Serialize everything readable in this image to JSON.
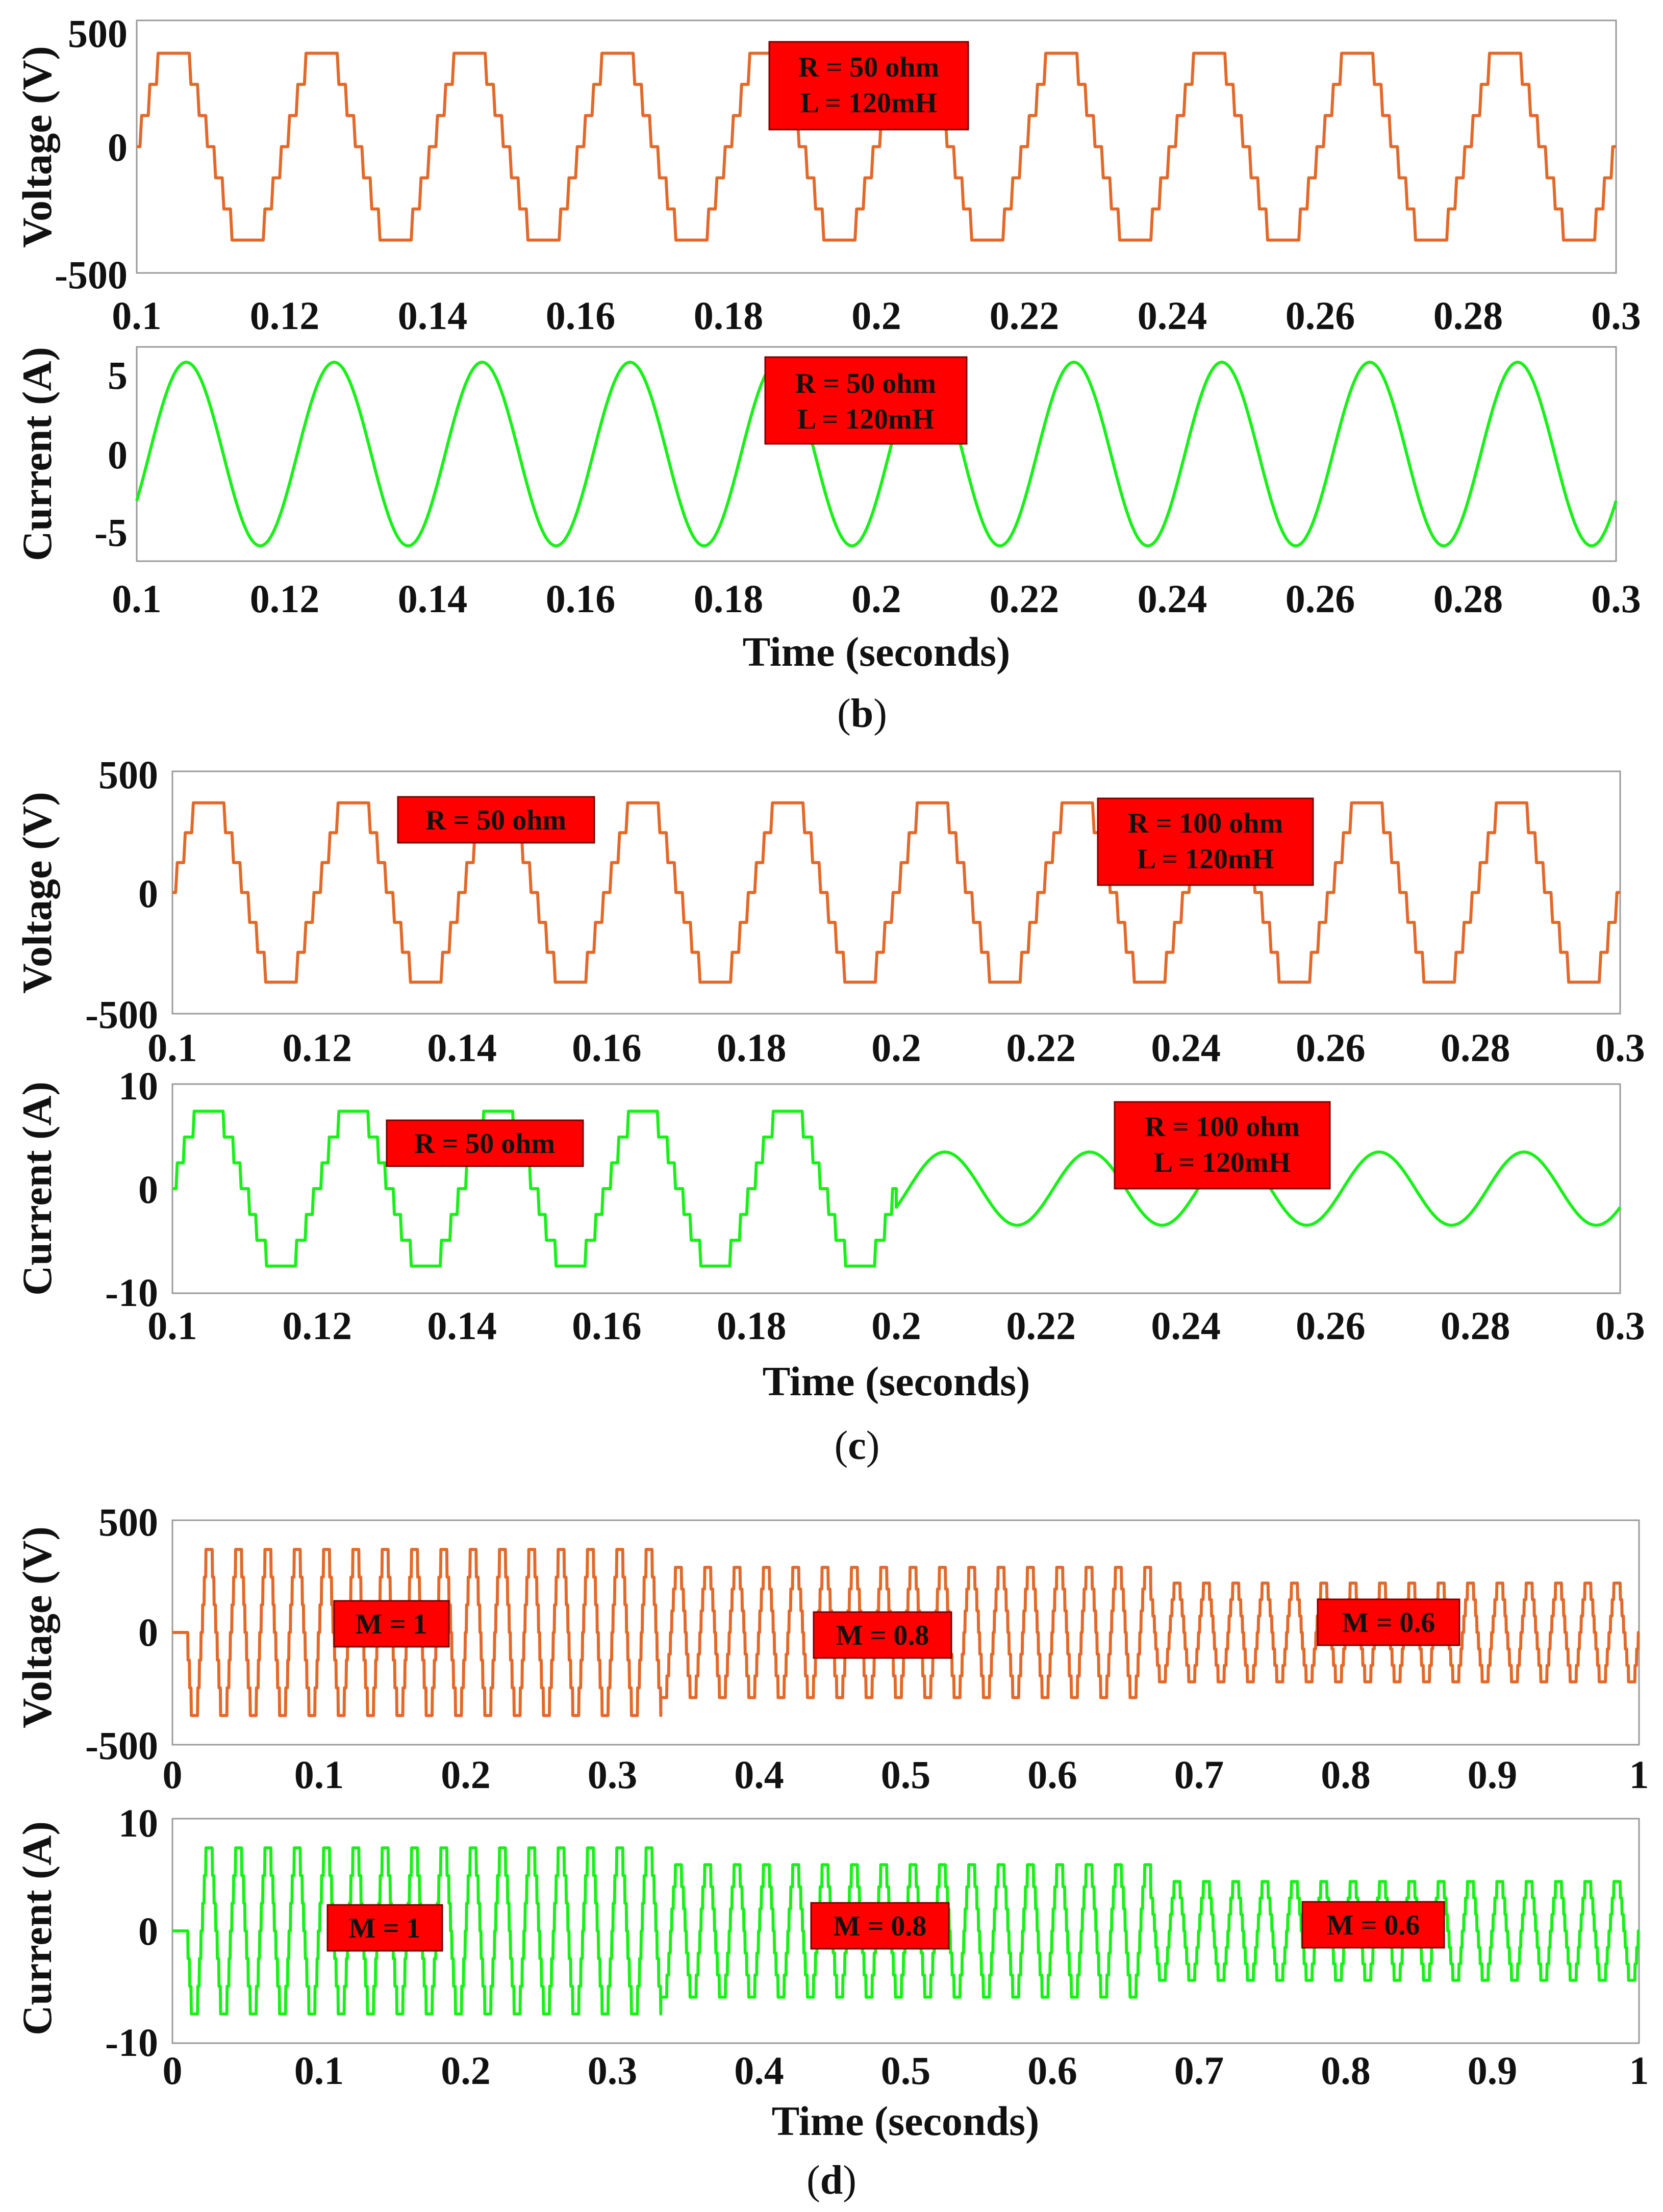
{
  "colors": {
    "voltage": "#e2692a",
    "current": "#19f019",
    "annotation_bg": "#ff0000",
    "axis": "#9a9a9a"
  },
  "panels": [
    {
      "caption": "b",
      "voltage": {
        "ylabel": "Voltage (V)",
        "xlim": [
          0.1,
          0.3
        ],
        "ylim": [
          -500,
          500
        ],
        "yticks": [
          "500",
          "0",
          "-500"
        ],
        "xticks": [
          "0.1",
          "0.12",
          "0.14",
          "0.16",
          "0.18",
          "0.2",
          "0.22",
          "0.24",
          "0.26",
          "0.28",
          "0.3"
        ],
        "annotations": [
          {
            "lines": [
              "R = 50 ohm",
              "L = 120mH"
            ]
          }
        ]
      },
      "current": {
        "ylabel": "Current (A)",
        "xlim": [
          0.1,
          0.3
        ],
        "ylim": [
          -7,
          7
        ],
        "yticks": [
          "5",
          "0",
          "-5"
        ],
        "xticks": [
          "0.1",
          "0.12",
          "0.14",
          "0.16",
          "0.18",
          "0.2",
          "0.22",
          "0.24",
          "0.26",
          "0.28",
          "0.3"
        ],
        "xlabel": "Time (seconds)",
        "annotations": [
          {
            "lines": [
              "R = 50 ohm",
              "L = 120mH"
            ]
          }
        ]
      }
    },
    {
      "caption": "c",
      "voltage": {
        "ylabel": "Voltage (V)",
        "xlim": [
          0.1,
          0.3
        ],
        "ylim": [
          -500,
          500
        ],
        "yticks": [
          "500",
          "0",
          "-500"
        ],
        "xticks": [
          "0.1",
          "0.12",
          "0.14",
          "0.16",
          "0.18",
          "0.2",
          "0.22",
          "0.24",
          "0.26",
          "0.28",
          "0.3"
        ],
        "annotations": [
          {
            "lines": [
              "R = 50 ohm"
            ]
          },
          {
            "lines": [
              "R = 100 ohm",
              "L = 120mH"
            ]
          }
        ]
      },
      "current": {
        "ylabel": "Current (A)",
        "xlim": [
          0.1,
          0.3
        ],
        "ylim": [
          -10,
          10
        ],
        "yticks": [
          "10",
          "0",
          "-10"
        ],
        "xticks": [
          "0.1",
          "0.12",
          "0.14",
          "0.16",
          "0.18",
          "0.2",
          "0.22",
          "0.24",
          "0.26",
          "0.28",
          "0.3"
        ],
        "xlabel": "Time (seconds)",
        "annotations": [
          {
            "lines": [
              "R = 50 ohm"
            ]
          },
          {
            "lines": [
              "R = 100 ohm",
              "L = 120mH"
            ]
          }
        ]
      }
    },
    {
      "caption": "d",
      "voltage": {
        "ylabel": "Voltage (V)",
        "xlim": [
          0,
          1
        ],
        "ylim": [
          -500,
          500
        ],
        "yticks": [
          "500",
          "0",
          "-500"
        ],
        "xticks": [
          "0",
          "0.1",
          "0.2",
          "0.3",
          "0.4",
          "0.5",
          "0.6",
          "0.7",
          "0.8",
          "0.9",
          "1"
        ],
        "annotations": [
          {
            "lines": [
              "M = 1"
            ]
          },
          {
            "lines": [
              "M = 0.8"
            ]
          },
          {
            "lines": [
              "M = 0.6"
            ]
          }
        ]
      },
      "current": {
        "ylabel": "Current (A)",
        "xlim": [
          0,
          1
        ],
        "ylim": [
          -10,
          10
        ],
        "yticks": [
          "10",
          "0",
          "-10"
        ],
        "xticks": [
          "0",
          "0.1",
          "0.2",
          "0.3",
          "0.4",
          "0.5",
          "0.6",
          "0.7",
          "0.8",
          "0.9",
          "1"
        ],
        "xlabel": "Time (seconds)",
        "annotations": [
          {
            "lines": [
              "M = 1"
            ]
          },
          {
            "lines": [
              "M = 0.8"
            ]
          },
          {
            "lines": [
              "M = 0.6"
            ]
          }
        ]
      }
    }
  ],
  "chart_data": [
    {
      "id": "b-voltage",
      "type": "line",
      "title": "",
      "xlabel": "",
      "ylabel": "Voltage (V)",
      "xlim": [
        0.1,
        0.3
      ],
      "ylim": [
        -500,
        500
      ],
      "series": [
        {
          "name": "Voltage",
          "waveform": "staircase-sine",
          "frequency_hz": 50,
          "amplitude": 370,
          "levels": 7,
          "t_start": 0.1,
          "t_end": 0.3
        }
      ]
    },
    {
      "id": "b-current",
      "type": "line",
      "title": "",
      "xlabel": "Time (seconds)",
      "ylabel": "Current (A)",
      "xlim": [
        0.1,
        0.3
      ],
      "ylim": [
        -7,
        7
      ],
      "series": [
        {
          "name": "Current",
          "waveform": "sine",
          "frequency_hz": 50,
          "amplitude": 6,
          "lag_s": 0.0017,
          "t_start": 0.1,
          "t_end": 0.3
        }
      ]
    },
    {
      "id": "c-voltage",
      "type": "line",
      "title": "",
      "xlabel": "",
      "ylabel": "Voltage (V)",
      "xlim": [
        0.1,
        0.3
      ],
      "ylim": [
        -500,
        500
      ],
      "series": [
        {
          "name": "Voltage",
          "waveform": "staircase-sine",
          "frequency_hz": 50,
          "amplitude": 370,
          "levels": 7,
          "t_start": 0.1,
          "t_end": 0.3
        }
      ]
    },
    {
      "id": "c-current",
      "type": "line",
      "title": "",
      "xlabel": "Time (seconds)",
      "ylabel": "Current (A)",
      "xlim": [
        0.1,
        0.3
      ],
      "ylim": [
        -10,
        10
      ],
      "series": [
        {
          "name": "Current (R = 50 ohm)",
          "waveform": "staircase-sine",
          "frequency_hz": 50,
          "amplitude": 7.4,
          "levels": 7,
          "t_start": 0.1,
          "t_end": 0.2
        },
        {
          "name": "Current (R = 100 ohm, L = 120mH)",
          "waveform": "sine",
          "frequency_hz": 50,
          "amplitude": 3.5,
          "lag_s": 0.0017,
          "t_start": 0.2,
          "t_end": 0.3
        }
      ]
    },
    {
      "id": "d-voltage",
      "type": "line",
      "title": "",
      "xlabel": "",
      "ylabel": "Voltage (V)",
      "xlim": [
        0,
        1
      ],
      "ylim": [
        -500,
        500
      ],
      "series": [
        {
          "name": "Voltage (M = 1)",
          "waveform": "staircase-sine",
          "frequency_hz": 50,
          "amplitude": 370,
          "levels": 7,
          "t_start": 0.01,
          "t_end": 0.333
        },
        {
          "name": "Voltage (M = 0.8)",
          "waveform": "staircase-sine",
          "frequency_hz": 50,
          "amplitude": 290,
          "levels": 7,
          "t_start": 0.333,
          "t_end": 0.667
        },
        {
          "name": "Voltage (M = 0.6)",
          "waveform": "staircase-sine",
          "frequency_hz": 50,
          "amplitude": 220,
          "levels": 7,
          "t_start": 0.667,
          "t_end": 1.0
        }
      ]
    },
    {
      "id": "d-current",
      "type": "line",
      "title": "",
      "xlabel": "Time (seconds)",
      "ylabel": "Current (A)",
      "xlim": [
        0,
        1
      ],
      "ylim": [
        -10,
        10
      ],
      "series": [
        {
          "name": "Current (M = 1)",
          "waveform": "staircase-sine",
          "frequency_hz": 50,
          "amplitude": 7.4,
          "levels": 7,
          "t_start": 0.01,
          "t_end": 0.333
        },
        {
          "name": "Current (M = 0.8)",
          "waveform": "staircase-sine",
          "frequency_hz": 50,
          "amplitude": 5.9,
          "levels": 7,
          "t_start": 0.333,
          "t_end": 0.667
        },
        {
          "name": "Current (M = 0.6)",
          "waveform": "staircase-sine",
          "frequency_hz": 50,
          "amplitude": 4.4,
          "levels": 7,
          "t_start": 0.667,
          "t_end": 1.0
        }
      ]
    }
  ]
}
